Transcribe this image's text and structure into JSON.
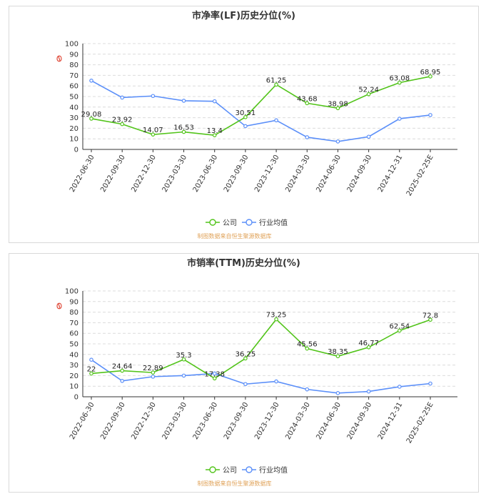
{
  "colors": {
    "company": "#52c41a",
    "industry": "#5b8ff9",
    "source": "#e0a35a"
  },
  "legend": {
    "company": "公司",
    "industry": "行业均值"
  },
  "source_note": "制图数据来自恒生聚源数据库",
  "chart_data": [
    {
      "type": "line",
      "title": "市净率(LF)历史分位(%)",
      "ylabel": "",
      "ylim": [
        0,
        100
      ],
      "yticks": [
        0,
        10,
        20,
        30,
        40,
        50,
        60,
        70,
        80,
        90,
        100
      ],
      "categories": [
        "2022-06-30",
        "2022-09-30",
        "2022-12-30",
        "2023-03-30",
        "2023-06-30",
        "2023-09-30",
        "2023-12-30",
        "2024-03-30",
        "2024-06-30",
        "2024-09-30",
        "2024-12-31",
        "2025-02-25E"
      ],
      "series": [
        {
          "name": "公司",
          "values": [
            29.08,
            23.92,
            14.07,
            16.53,
            13.4,
            30.51,
            61.25,
            43.68,
            38.98,
            52.24,
            63.08,
            68.95
          ],
          "labels": [
            "29.08",
            "23.92",
            "14.07",
            "16.53",
            "13.4",
            "30.51",
            "61.25",
            "43.68",
            "38.98",
            "52.24",
            "63.08",
            "68.95"
          ]
        },
        {
          "name": "行业均值",
          "values": [
            65,
            49,
            50.5,
            46,
            45.5,
            22,
            27.5,
            11.5,
            7.5,
            12,
            29,
            32.5
          ]
        }
      ]
    },
    {
      "type": "line",
      "title": "市销率(TTM)历史分位(%)",
      "ylabel": "",
      "ylim": [
        0,
        100
      ],
      "yticks": [
        0,
        10,
        20,
        30,
        40,
        50,
        60,
        70,
        80,
        90,
        100
      ],
      "categories": [
        "2022-06-30",
        "2022-09-30",
        "2022-12-30",
        "2023-03-30",
        "2023-06-30",
        "2023-09-30",
        "2023-12-30",
        "2024-03-30",
        "2024-06-30",
        "2024-09-30",
        "2024-12-31",
        "2025-02-25E"
      ],
      "series": [
        {
          "name": "公司",
          "values": [
            22,
            24.64,
            22.89,
            35.3,
            17.38,
            36.25,
            73.25,
            45.56,
            38.35,
            46.77,
            62.54,
            72.8
          ],
          "labels": [
            "22",
            "24.64",
            "22.89",
            "35.3",
            "17.38",
            "36.25",
            "73.25",
            "45.56",
            "38.35",
            "46.77",
            "62.54",
            "72.8"
          ]
        },
        {
          "name": "行业均值",
          "values": [
            35,
            15,
            19,
            20,
            22,
            12,
            14.5,
            7,
            3.5,
            5,
            9.5,
            12.5
          ]
        }
      ]
    }
  ]
}
